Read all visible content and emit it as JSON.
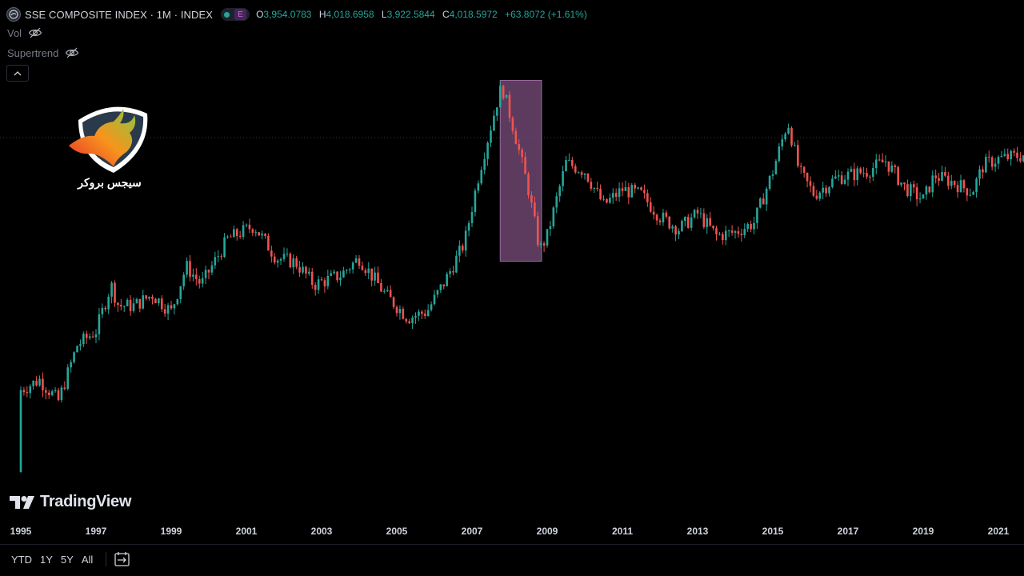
{
  "legend": {
    "symbol_icon": "exchange-logo-icon",
    "title": "SSE COMPOSITE INDEX · 1M · INDEX",
    "status_badge": "E",
    "ohlc": {
      "o_label": "O",
      "o_value": "3,954.0783",
      "h_label": "H",
      "h_value": "4,018.6958",
      "l_label": "L",
      "l_value": "3,922.5844",
      "c_label": "C",
      "c_value": "4,018.5972",
      "change": "+63.8072 (+1.61%)"
    }
  },
  "indicators": [
    {
      "label": "Vol",
      "icon": "eye-off-icon"
    },
    {
      "label": "Supertrend",
      "icon": "eye-off-icon"
    }
  ],
  "collapse_icon": "chevron-up-icon",
  "brand_logo": {
    "text": "سیجس بروکر",
    "icon": "bull-head-logo"
  },
  "watermark": {
    "text": "TradingView",
    "icon": "tradingview-logo-icon"
  },
  "colors": {
    "up": "#26a69a",
    "down": "#ef5350",
    "highlight": "#7b4f7f",
    "background": "#000000"
  },
  "chart_data": {
    "type": "candlestick",
    "title": "SSE COMPOSITE INDEX · 1M · INDEX",
    "interval": "1M",
    "x_tick_labels": [
      "1995",
      "1997",
      "1999",
      "2001",
      "2003",
      "2005",
      "2007",
      "2009",
      "2011",
      "2013",
      "2015",
      "2017",
      "2019",
      "2021"
    ],
    "xlim": [
      1995.0,
      2021.7
    ],
    "ylim": [
      300,
      6400
    ],
    "scale": "log",
    "approx_close_by_year": [
      [
        1995.0,
        650
      ],
      [
        1995.5,
        700
      ],
      [
        1996.0,
        600
      ],
      [
        1996.5,
        900
      ],
      [
        1997.0,
        1000
      ],
      [
        1997.4,
        1400
      ],
      [
        1997.6,
        1200
      ],
      [
        1998.0,
        1200
      ],
      [
        1998.5,
        1300
      ],
      [
        1999.0,
        1150
      ],
      [
        1999.4,
        1600
      ],
      [
        1999.8,
        1400
      ],
      [
        2000.5,
        1950
      ],
      [
        2001.2,
        2150
      ],
      [
        2001.8,
        1700
      ],
      [
        2002.3,
        1650
      ],
      [
        2002.8,
        1400
      ],
      [
        2003.5,
        1500
      ],
      [
        2004.0,
        1700
      ],
      [
        2004.7,
        1300
      ],
      [
        2005.3,
        1100
      ],
      [
        2005.8,
        1150
      ],
      [
        2006.3,
        1450
      ],
      [
        2006.8,
        1900
      ],
      [
        2007.2,
        3200
      ],
      [
        2007.7,
        5500
      ],
      [
        2007.8,
        5950
      ],
      [
        2008.1,
        4400
      ],
      [
        2008.5,
        2800
      ],
      [
        2008.8,
        1800
      ],
      [
        2009.0,
        2000
      ],
      [
        2009.5,
        3400
      ],
      [
        2010.0,
        3200
      ],
      [
        2010.5,
        2500
      ],
      [
        2011.0,
        2800
      ],
      [
        2011.5,
        2700
      ],
      [
        2012.0,
        2300
      ],
      [
        2012.5,
        2100
      ],
      [
        2013.0,
        2350
      ],
      [
        2013.5,
        2000
      ],
      [
        2014.0,
        2050
      ],
      [
        2014.5,
        2200
      ],
      [
        2015.0,
        3200
      ],
      [
        2015.4,
        4600
      ],
      [
        2015.7,
        3200
      ],
      [
        2016.1,
        2700
      ],
      [
        2016.7,
        3050
      ],
      [
        2017.5,
        3200
      ],
      [
        2018.0,
        3450
      ],
      [
        2018.5,
        2850
      ],
      [
        2019.0,
        2600
      ],
      [
        2019.3,
        3100
      ],
      [
        2019.8,
        2950
      ],
      [
        2020.3,
        2750
      ],
      [
        2020.6,
        3350
      ],
      [
        2021.0,
        3500
      ],
      [
        2021.7,
        3600
      ]
    ],
    "last_bar": {
      "open": 3954.0783,
      "high": 4018.6958,
      "low": 3922.5844,
      "close": 4018.5972
    },
    "highlight_range": {
      "from": 2007.75,
      "to": 2008.85,
      "low": 1660,
      "high": 6200,
      "label": ""
    },
    "grid": false
  },
  "bottom_bar": {
    "ranges": [
      "YTD",
      "1Y",
      "5Y",
      "All"
    ],
    "goto_icon": "calendar-goto-icon"
  }
}
